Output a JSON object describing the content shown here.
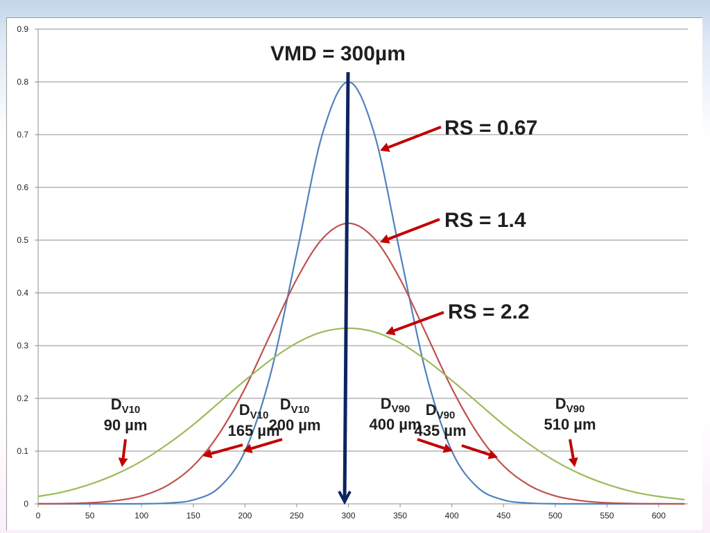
{
  "chart_data": {
    "type": "line",
    "xlim": [
      0,
      625
    ],
    "ylim": [
      0,
      0.9
    ],
    "xticks": [
      "0",
      "50",
      "100",
      "150",
      "200",
      "250",
      "300",
      "350",
      "400",
      "450",
      "500",
      "550",
      "600"
    ],
    "yticks": [
      "0",
      "0.1",
      "0.2",
      "0.3",
      "0.4",
      "0.5",
      "0.6",
      "0.7",
      "0.8",
      "0.9"
    ],
    "grid": "horizontal",
    "x": [
      0,
      25,
      50,
      75,
      100,
      125,
      150,
      175,
      200,
      225,
      250,
      275,
      300,
      325,
      350,
      375,
      400,
      425,
      450,
      475,
      500,
      525,
      550,
      575,
      600,
      625
    ],
    "series": [
      {
        "color": "#4f81bd",
        "values": [
          0,
          0,
          0,
          0,
          0.0002,
          0.0014,
          0.0074,
          0.031,
          0.1,
          0.248,
          0.475,
          0.702,
          0.8,
          0.702,
          0.475,
          0.248,
          0.1,
          0.031,
          0.0074,
          0.0014,
          0.0002,
          0,
          0,
          0,
          0,
          0
        ]
      },
      {
        "color": "#c0504d",
        "values": [
          0.0002,
          0.0006,
          0.002,
          0.006,
          0.015,
          0.035,
          0.072,
          0.133,
          0.219,
          0.323,
          0.426,
          0.503,
          0.532,
          0.503,
          0.426,
          0.323,
          0.219,
          0.133,
          0.072,
          0.035,
          0.015,
          0.006,
          0.002,
          0.0006,
          0.0002,
          0
        ]
      },
      {
        "color": "#9bbb59",
        "values": [
          0.014,
          0.023,
          0.037,
          0.056,
          0.081,
          0.113,
          0.15,
          0.192,
          0.234,
          0.273,
          0.305,
          0.326,
          0.333,
          0.326,
          0.305,
          0.273,
          0.234,
          0.192,
          0.15,
          0.113,
          0.081,
          0.056,
          0.037,
          0.023,
          0.014,
          0.008
        ]
      }
    ],
    "annotations": {
      "vmd": "VMD = 300µm",
      "rs": [
        "RS = 0.67",
        "RS = 1.4",
        "RS = 2.2"
      ],
      "d": [
        {
          "main": "D",
          "sub": "V10",
          "value": "90 µm"
        },
        {
          "main": "D",
          "sub": "V10",
          "value": "165 µm"
        },
        {
          "main": "D",
          "sub": "V10",
          "value": "200 µm"
        },
        {
          "main": "D",
          "sub": "V90",
          "value": "400 µm"
        },
        {
          "main": "D",
          "sub": "V90",
          "value": "435 µm"
        },
        {
          "main": "D",
          "sub": "V90",
          "value": "510 µm"
        }
      ]
    },
    "colors": {
      "arrow_red": "#c00000",
      "vmd_arrow": "#0d2461"
    }
  }
}
